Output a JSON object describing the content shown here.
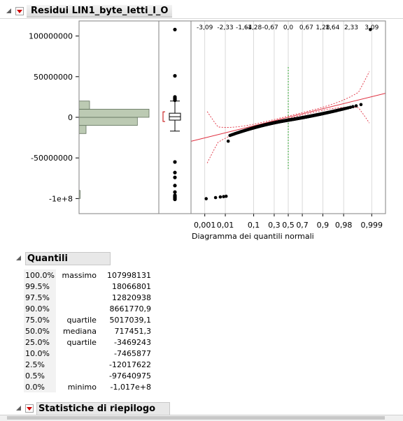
{
  "report": {
    "title": "Residui LIN1_byte_letti_I_O"
  },
  "chart_data": {
    "type": "histogram-boxplot-normal-quantile",
    "y_ticks": [
      {
        "label": "100000000",
        "value": 100000000
      },
      {
        "label": "50000000",
        "value": 50000000
      },
      {
        "label": "0",
        "value": 0
      },
      {
        "label": "-50000000",
        "value": -50000000
      },
      {
        "label": "-1e+8",
        "value": -100000000
      }
    ],
    "ylim": [
      -118000000,
      113000000
    ],
    "histogram_bins": [
      {
        "from": -20000000,
        "to": -10000000,
        "count": 0.12
      },
      {
        "from": -10000000,
        "to": 0,
        "count": 1.0
      },
      {
        "from": 0,
        "to": 10000000,
        "count": 1.2
      },
      {
        "from": 10000000,
        "to": 20000000,
        "count": 0.18
      },
      {
        "from": -100000000,
        "to": -90000000,
        "count": 0.01
      }
    ],
    "box": {
      "q1": -3469243,
      "median": 717451.3,
      "q3": 5017039.1,
      "whisker_low": -17000000,
      "whisker_high": 20000000
    },
    "top_quantile_labels": [
      "-3,09",
      "-2,33",
      "-1,64",
      "-1,28",
      "-0,67",
      "0,0",
      "0,67",
      "1,28",
      "1,64",
      "2,33",
      "3,09"
    ],
    "top_quantile_values": [
      -3.09,
      -2.33,
      -1.64,
      -1.28,
      -0.67,
      0.0,
      0.67,
      1.28,
      1.64,
      2.33,
      3.09
    ],
    "bottom_prob_labels": [
      "0,001",
      "0,01",
      "0,1",
      "0,3",
      "0,5",
      "0,7",
      "0,9",
      "0,98",
      "0,999"
    ],
    "bottom_prob_z": [
      -3.09,
      -2.33,
      -1.28,
      -0.52,
      0.0,
      0.52,
      1.28,
      2.05,
      3.09
    ],
    "xlabel": "Diagramma dei quantili normali"
  },
  "quantiles": {
    "title": "Quantili",
    "rows": [
      {
        "pct": "100.0%",
        "label": "massimo",
        "value": "107998131"
      },
      {
        "pct": "99.5%",
        "label": "",
        "value": "18066801"
      },
      {
        "pct": "97.5%",
        "label": "",
        "value": "12820938"
      },
      {
        "pct": "90.0%",
        "label": "",
        "value": "8661770,9"
      },
      {
        "pct": "75.0%",
        "label": "quartile",
        "value": "5017039,1"
      },
      {
        "pct": "50.0%",
        "label": "mediana",
        "value": "717451,3"
      },
      {
        "pct": "25.0%",
        "label": "quartile",
        "value": "-3469243"
      },
      {
        "pct": "10.0%",
        "label": "",
        "value": "-7465877"
      },
      {
        "pct": "2.5%",
        "label": "",
        "value": "-12017622"
      },
      {
        "pct": "0.5%",
        "label": "",
        "value": "-97640975"
      },
      {
        "pct": "0.0%",
        "label": "minimo",
        "value": "-1,017e+8"
      }
    ]
  },
  "summary": {
    "title": "Statistiche di riepilogo"
  }
}
